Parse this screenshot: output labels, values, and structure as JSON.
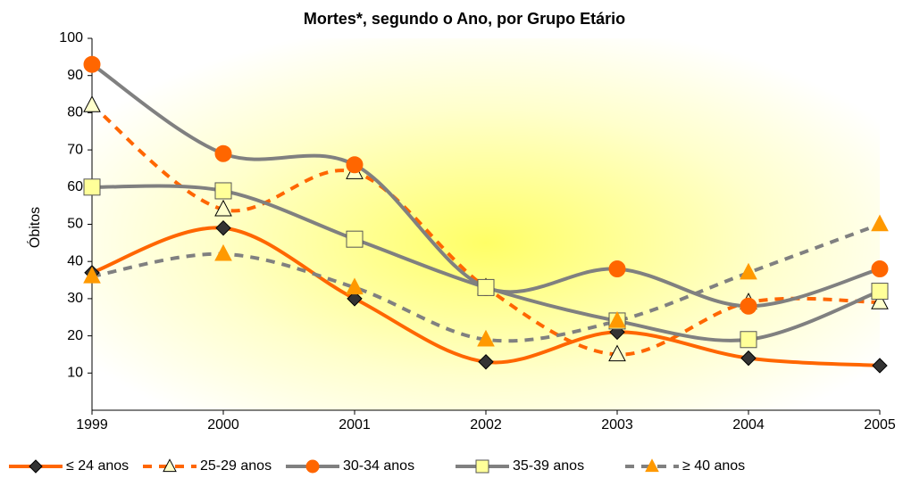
{
  "chart_data": {
    "type": "line",
    "title": "Mortes*, segundo o Ano, por Grupo Etário",
    "y_label": "Óbitos",
    "categories": [
      "1999",
      "2000",
      "2001",
      "2002",
      "2003",
      "2004",
      "2005"
    ],
    "ylim": [
      0,
      100
    ],
    "yticks": [
      10,
      20,
      30,
      40,
      50,
      60,
      70,
      80,
      90,
      100
    ],
    "smooth": true,
    "series": [
      {
        "name": "≤ 24 anos",
        "color": "#ff6600",
        "dash": "solid",
        "marker": "diamond",
        "marker_color": "#333333",
        "values": [
          37,
          49,
          30,
          13,
          21,
          14,
          12
        ]
      },
      {
        "name": "25-29 anos",
        "color": "#ff6600",
        "dash": "dashed",
        "marker": "triangle",
        "marker_color": "#ffffcc",
        "values": [
          82,
          54,
          64,
          33,
          15,
          29,
          29
        ]
      },
      {
        "name": "30-34 anos",
        "color": "#808080",
        "dash": "solid",
        "marker": "circle",
        "marker_color": "#ff6600",
        "values": [
          93,
          69,
          66,
          33,
          38,
          28,
          38
        ]
      },
      {
        "name": "35-39 anos",
        "color": "#808080",
        "dash": "solid",
        "marker": "square",
        "marker_color": "#ffff99",
        "values": [
          60,
          59,
          46,
          33,
          24,
          19,
          32
        ]
      },
      {
        "name": "≥ 40 anos",
        "color": "#808080",
        "dash": "dashed",
        "marker": "triangle",
        "marker_color": "#ff9900",
        "values": [
          36,
          42,
          33,
          19,
          24,
          37,
          50
        ]
      }
    ]
  }
}
